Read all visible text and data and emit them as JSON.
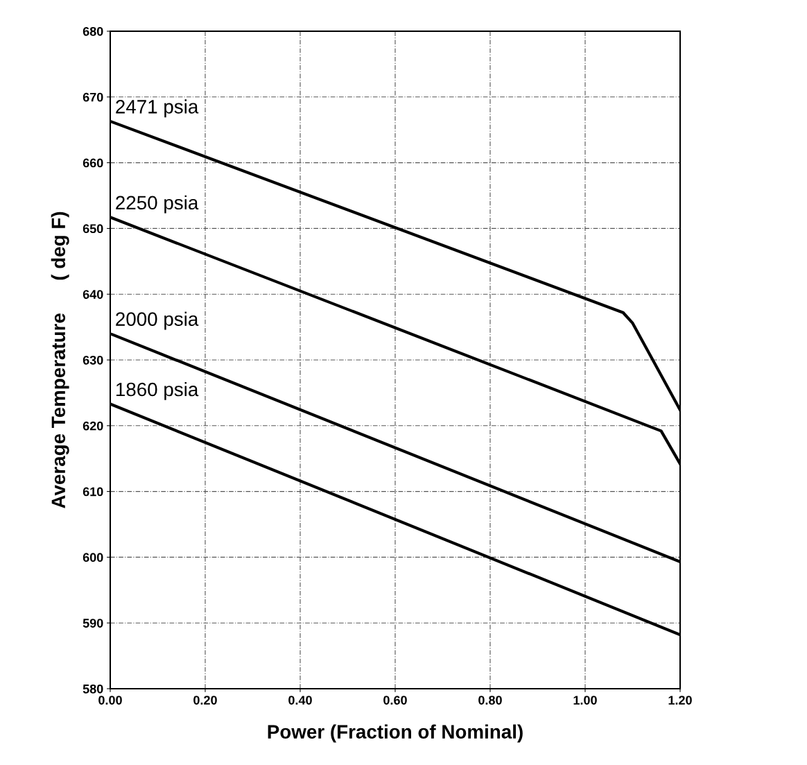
{
  "chart_data": {
    "type": "line",
    "xlabel": "Power (Fraction of Nominal)",
    "ylabel": "Average Temperature      ( deg F)",
    "xlim": [
      0,
      1.2
    ],
    "ylim": [
      580,
      680
    ],
    "xticks": [
      {
        "value": 0,
        "label": "0.00"
      },
      {
        "value": 0.2,
        "label": "0.20"
      },
      {
        "value": 0.4,
        "label": "0.40"
      },
      {
        "value": 0.6,
        "label": "0.60"
      },
      {
        "value": 0.8,
        "label": "0.80"
      },
      {
        "value": 1.0,
        "label": "1.00"
      },
      {
        "value": 1.2,
        "label": "1.20"
      }
    ],
    "yticks": [
      580,
      590,
      600,
      610,
      620,
      630,
      640,
      650,
      660,
      670,
      680
    ],
    "grid": true,
    "legend": false,
    "marker": "none",
    "line_style": "solid",
    "series": [
      {
        "name": "2471 psia",
        "color": "#000000",
        "x": [
          0,
          1.08,
          1.1,
          1.2
        ],
        "values": [
          666.3,
          637.2,
          635.6,
          622.4
        ]
      },
      {
        "name": "2250 psia",
        "color": "#000000",
        "x": [
          0,
          1.16,
          1.2
        ],
        "values": [
          651.7,
          619.2,
          614.2
        ]
      },
      {
        "name": "2000 psia",
        "color": "#000000",
        "x": [
          0,
          1.2
        ],
        "values": [
          634.0,
          599.3
        ]
      },
      {
        "name": "1860 psia",
        "color": "#000000",
        "x": [
          0,
          1.2
        ],
        "values": [
          623.3,
          588.2
        ]
      }
    ]
  }
}
